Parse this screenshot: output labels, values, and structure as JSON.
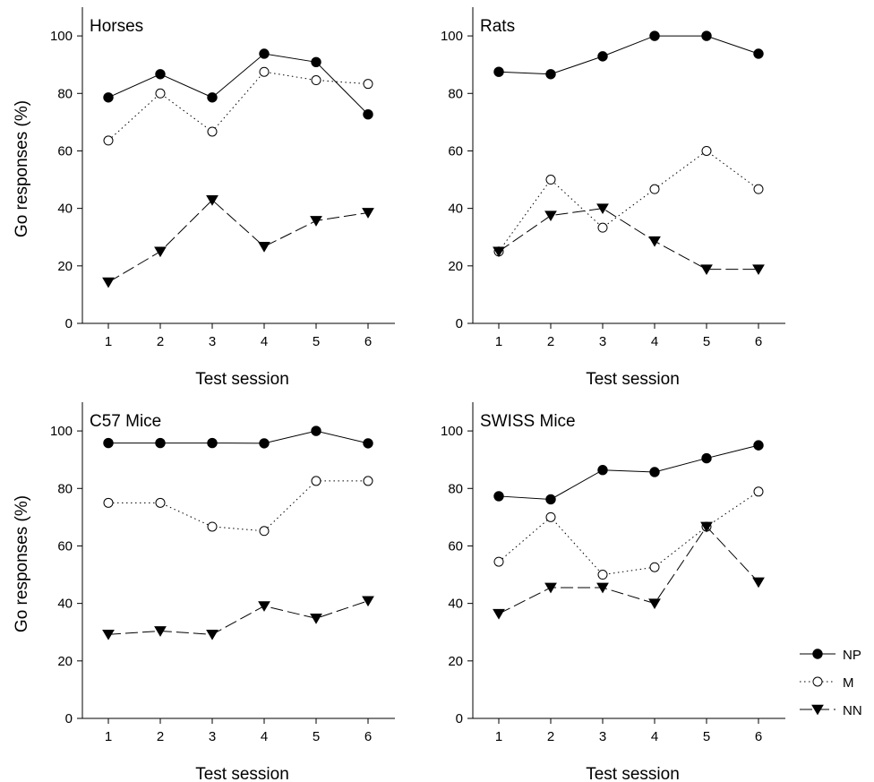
{
  "legend": [
    {
      "key": "NP",
      "label": "NP"
    },
    {
      "key": "M",
      "label": "M"
    },
    {
      "key": "NN",
      "label": "NN"
    }
  ],
  "chart_data": [
    {
      "type": "line",
      "title": "Horses",
      "xlabel": "Test session",
      "ylabel": "Go responses (%)",
      "x": [
        1,
        2,
        3,
        4,
        5,
        6
      ],
      "ylim": [
        0,
        110
      ],
      "yticks": [
        0,
        20,
        40,
        60,
        80,
        100
      ],
      "grid": false,
      "series": [
        {
          "name": "NP",
          "values": [
            78.6,
            86.7,
            78.6,
            93.8,
            90.9,
            72.7
          ]
        },
        {
          "name": "M",
          "values": [
            63.6,
            80.0,
            66.7,
            87.5,
            84.6,
            83.3
          ]
        },
        {
          "name": "NN",
          "values": [
            14.3,
            25.0,
            42.9,
            26.7,
            35.7,
            38.5
          ]
        }
      ]
    },
    {
      "type": "line",
      "title": "Rats",
      "xlabel": "Test session",
      "ylabel": "",
      "x": [
        1,
        2,
        3,
        4,
        5,
        6
      ],
      "ylim": [
        0,
        110
      ],
      "yticks": [
        0,
        20,
        40,
        60,
        80,
        100
      ],
      "grid": false,
      "series": [
        {
          "name": "NP",
          "values": [
            87.5,
            86.7,
            92.9,
            100.0,
            100.0,
            93.8
          ]
        },
        {
          "name": "M",
          "values": [
            25.0,
            50.0,
            33.3,
            46.7,
            60.0,
            46.7
          ]
        },
        {
          "name": "NN",
          "values": [
            25.0,
            37.5,
            40.0,
            28.6,
            18.8,
            18.8
          ]
        }
      ]
    },
    {
      "type": "line",
      "title": "C57 Mice",
      "xlabel": "Test session",
      "ylabel": "Go responses (%)",
      "x": [
        1,
        2,
        3,
        4,
        5,
        6
      ],
      "ylim": [
        0,
        110
      ],
      "yticks": [
        0,
        20,
        40,
        60,
        80,
        100
      ],
      "grid": false,
      "series": [
        {
          "name": "NP",
          "values": [
            95.8,
            95.8,
            95.8,
            95.7,
            100.0,
            95.7
          ]
        },
        {
          "name": "M",
          "values": [
            75.0,
            75.0,
            66.7,
            65.2,
            82.6,
            82.6
          ]
        },
        {
          "name": "NN",
          "values": [
            29.2,
            30.4,
            29.2,
            39.1,
            34.8,
            40.9
          ]
        }
      ]
    },
    {
      "type": "line",
      "title": "SWISS Mice",
      "xlabel": "Test session",
      "ylabel": "",
      "x": [
        1,
        2,
        3,
        4,
        5,
        6
      ],
      "ylim": [
        0,
        110
      ],
      "yticks": [
        0,
        20,
        40,
        60,
        80,
        100
      ],
      "grid": false,
      "series": [
        {
          "name": "NP",
          "values": [
            77.3,
            76.2,
            86.4,
            85.7,
            90.5,
            95.0
          ]
        },
        {
          "name": "M",
          "values": [
            54.5,
            70.0,
            50.0,
            52.6,
            66.7,
            78.9
          ]
        },
        {
          "name": "NN",
          "values": [
            36.4,
            45.5,
            45.5,
            40.0,
            66.7,
            47.4
          ]
        }
      ]
    }
  ]
}
